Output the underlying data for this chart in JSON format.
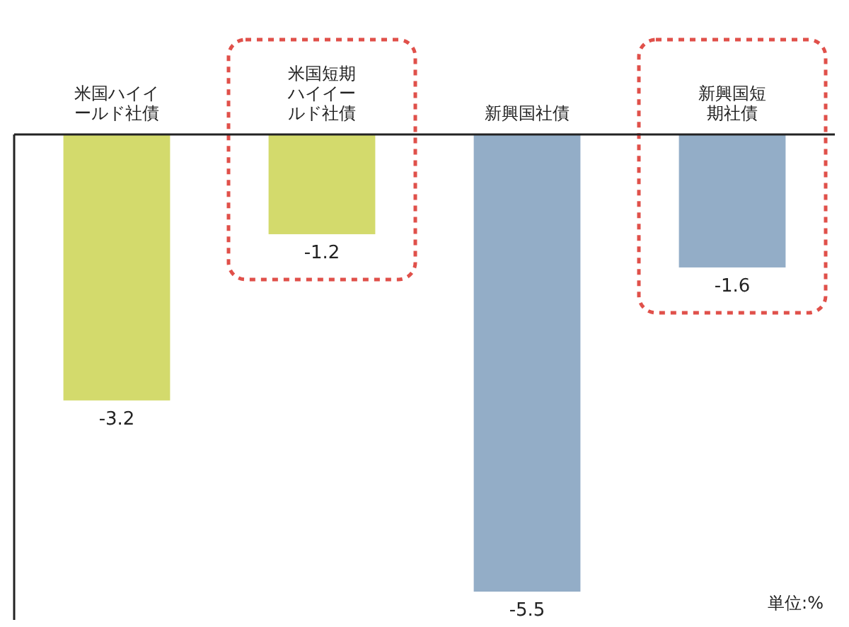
{
  "chart_data": {
    "type": "bar",
    "categories": [
      "米国ハイイールド社債",
      "米国短期ハイイールド社債",
      "新興国社債",
      "新興国短期社債"
    ],
    "values": [
      -3.2,
      -1.2,
      -5.5,
      -1.6
    ],
    "colors": [
      "#d3da6c",
      "#d3da6c",
      "#93adc7",
      "#93adc7"
    ],
    "data_labels": true,
    "annotations": [
      "単位:%"
    ]
  }
}
